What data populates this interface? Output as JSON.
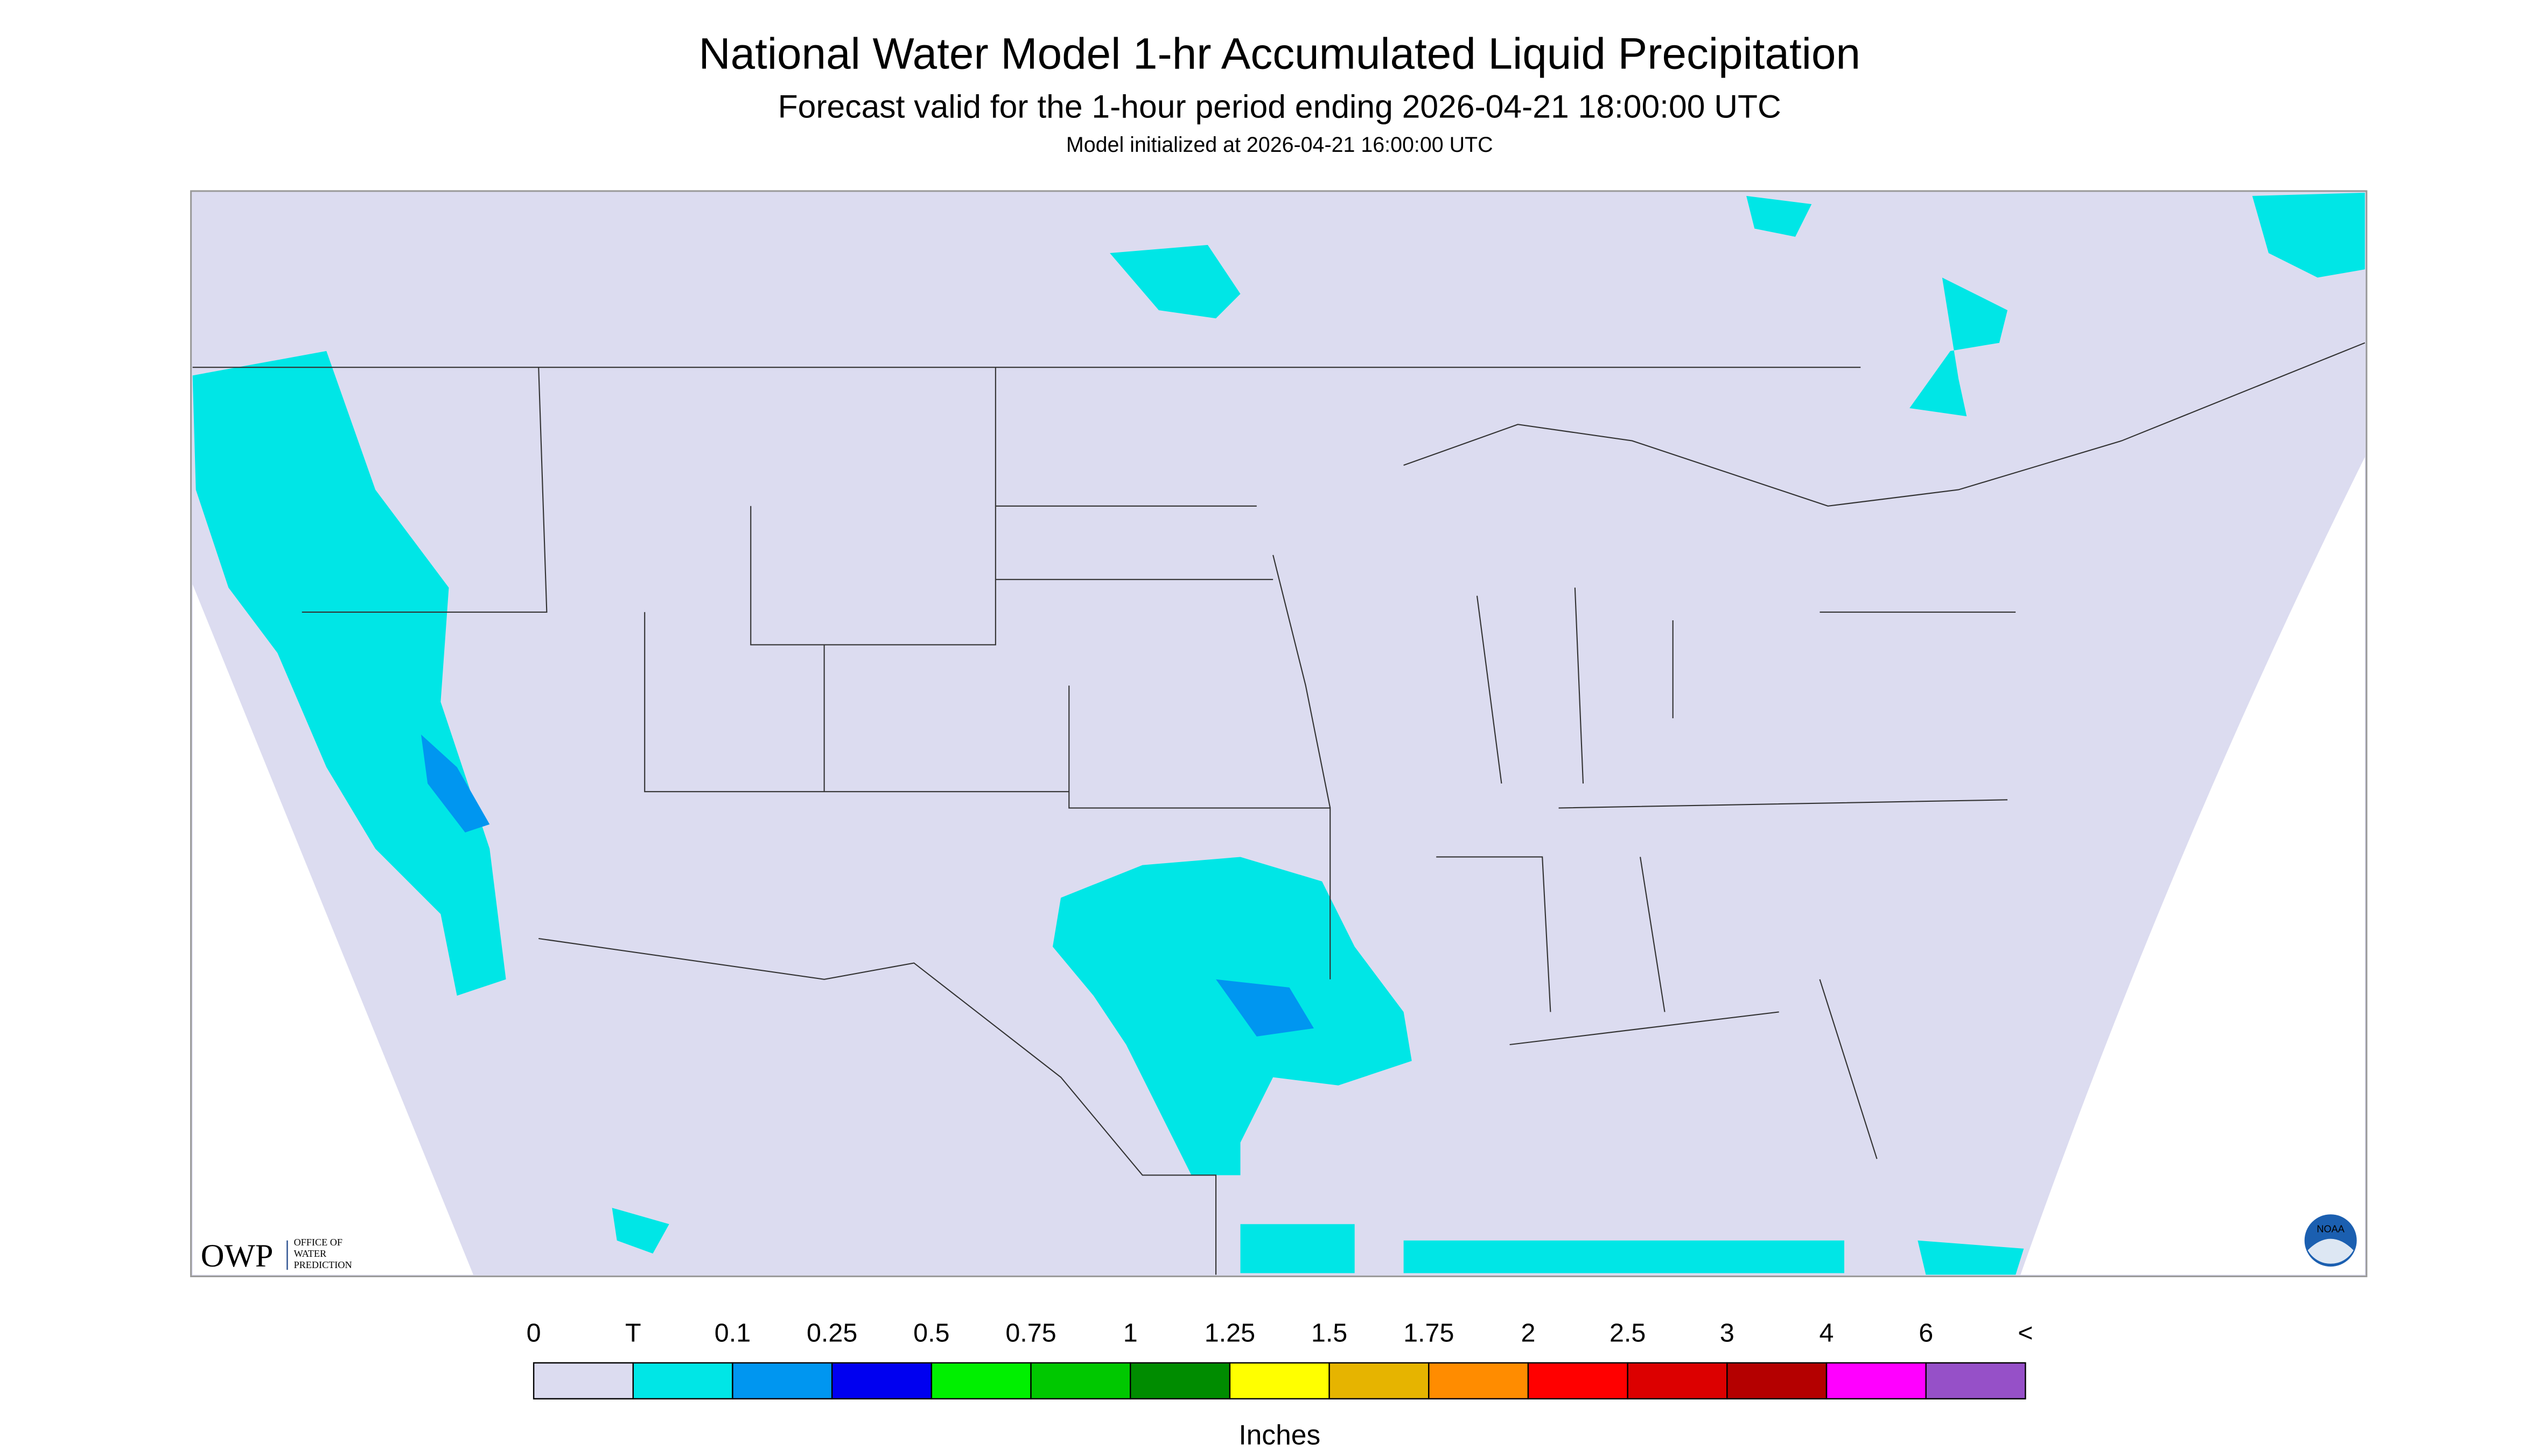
{
  "header": {
    "title": "National Water Model 1-hr Accumulated Liquid Precipitation",
    "subtitle": "Forecast valid for the 1-hour period ending 2026-04-21 18:00:00 UTC",
    "note": "Model initialized at 2026-04-21 16:00:00 UTC"
  },
  "logo": {
    "short": "OWP",
    "lines": [
      "OFFICE OF",
      "WATER",
      "PREDICTION"
    ],
    "badge": "NOAA"
  },
  "legend": {
    "labels": [
      "0",
      "T",
      "0.1",
      "0.25",
      "0.5",
      "0.75",
      "1",
      "1.25",
      "1.5",
      "1.75",
      "2",
      "2.5",
      "3",
      "4",
      "6",
      "<"
    ],
    "colors": [
      "#dcdcf0",
      "#00e6e6",
      "#0096f0",
      "#0000f0",
      "#00f000",
      "#00c800",
      "#008c00",
      "#ffff00",
      "#e6b400",
      "#ff8c00",
      "#ff0000",
      "#dc0000",
      "#b40000",
      "#ff00ff",
      "#9650c8"
    ],
    "unit": "Inches"
  }
}
